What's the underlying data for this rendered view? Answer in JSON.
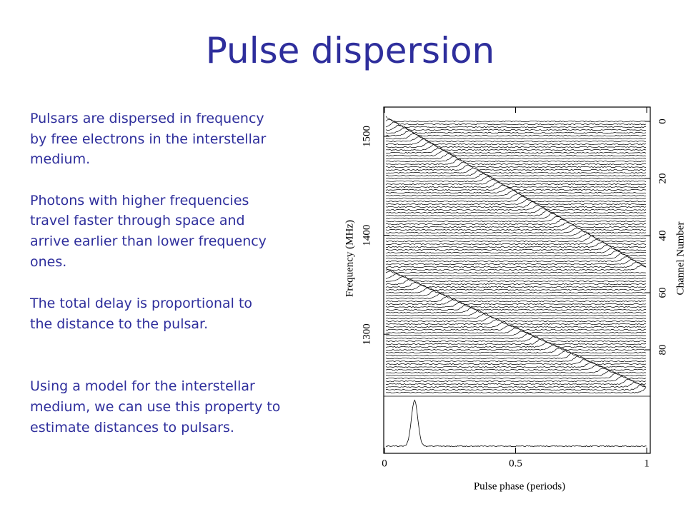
{
  "title": "Pulse dispersion",
  "paragraphs": [
    [
      "Pulsars are dispersed in frequency",
      "by free electrons in the interstellar",
      "medium."
    ],
    [
      "Photons with higher frequencies",
      "travel faster through space and",
      "arrive earlier than lower frequency",
      "ones."
    ],
    [
      "The total delay is proportional to",
      "the distance to the pulsar."
    ],
    [
      "Using a model for the interstellar",
      "medium, we can use this property to",
      "estimate distances to pulsars."
    ]
  ],
  "figure": {
    "x_label": "Pulse phase (periods)",
    "xlim": [
      0,
      1
    ],
    "xticks": [
      0,
      0.5,
      1
    ],
    "y_label": "Frequency (MHz)",
    "ylim": [
      1518,
      1241
    ],
    "yticks": [
      1500,
      1400,
      1300
    ],
    "y2_label": "Channel Number",
    "y2lim": [
      -1,
      95
    ],
    "y2ticks": [
      0,
      20,
      40,
      60,
      80
    ]
  }
}
